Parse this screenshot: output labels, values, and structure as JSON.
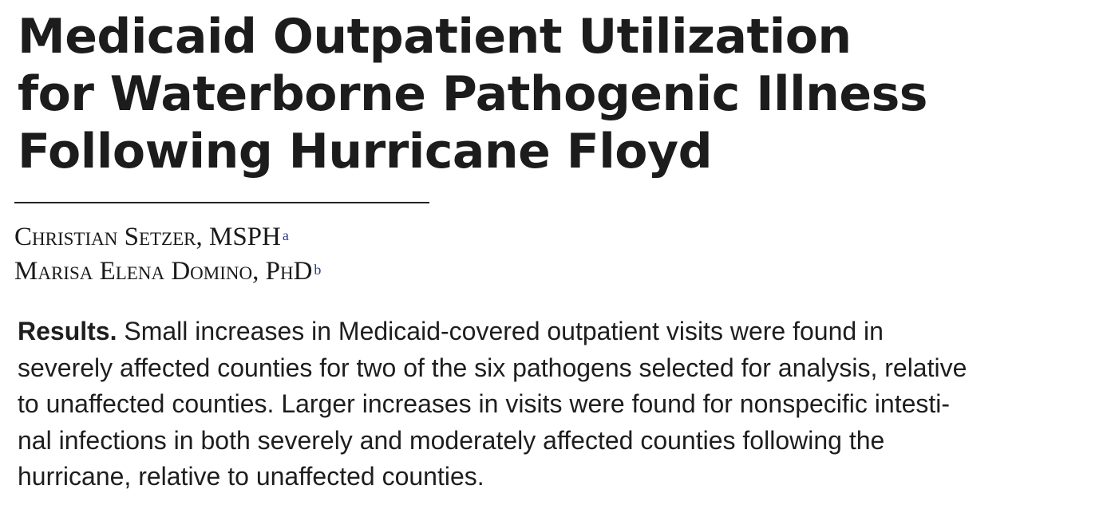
{
  "article": {
    "title_lines": [
      "Medicaid Outpatient Utilization",
      "for Waterborne Pathogenic Illness",
      "Following Hurricane Floyd"
    ],
    "authors": [
      {
        "name": "Christian Setzer, MSPH",
        "affiliation": "a"
      },
      {
        "name": "Marisa Elena Domino, PhD",
        "affiliation": "b"
      }
    ],
    "abstract": {
      "label": "Results.",
      "lines": [
        " Small increases in Medicaid-covered outpatient visits were found in",
        "severely affected counties for two of the six pathogens selected for analysis, relative",
        "to unaffected counties. Larger increases in visits were found for nonspecific intesti-",
        "nal infections in both severely and moderately affected counties following the",
        "hurricane, relative to unaffected counties."
      ]
    }
  }
}
